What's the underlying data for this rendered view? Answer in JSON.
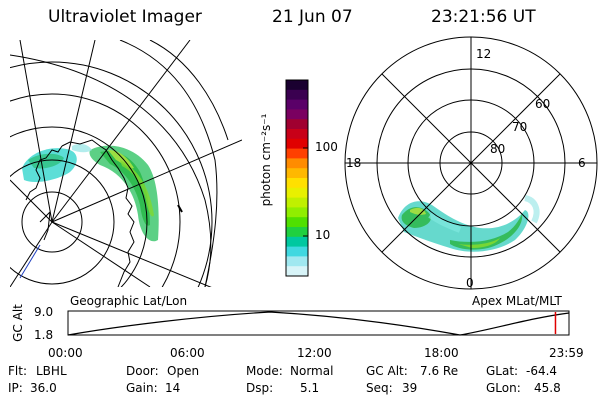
{
  "header": {
    "instrument": "Ultraviolet Imager",
    "date": "21 Jun 07",
    "time": "23:21:56 UT"
  },
  "colorbar": {
    "unit_label": "photon cm⁻²s⁻¹",
    "ticks": [
      "100",
      "10"
    ],
    "colors_top_to_bottom": [
      "#1a0030",
      "#3a0050",
      "#5a0068",
      "#7a0060",
      "#a00030",
      "#c80018",
      "#e00000",
      "#ff4000",
      "#ff8c00",
      "#ffb800",
      "#ffe000",
      "#e8f000",
      "#c0f000",
      "#90ee00",
      "#50e000",
      "#20d040",
      "#00c8a0",
      "#40d8e0",
      "#a0e8f0",
      "#d8f4f8"
    ]
  },
  "map_labels": {
    "left": "Geographic Lat/Lon",
    "right": "Apex MLat/MLT"
  },
  "polar_plot": {
    "mlt_labels": {
      "top": "12",
      "right": "6",
      "bottom": "0",
      "left": "18"
    },
    "lat_labels": [
      "60",
      "70",
      "80"
    ]
  },
  "altitude_plot": {
    "ylabel": "GC Alt",
    "y_ticks": [
      "9.0",
      "1.8"
    ],
    "x_ticks": [
      "00:00",
      "06:00",
      "12:00",
      "18:00",
      "23:59"
    ],
    "current_time_fraction": 0.973
  },
  "footer": {
    "row1": [
      {
        "label": "Flt:",
        "value": "LBHL"
      },
      {
        "label": "Door:",
        "value": "Open"
      },
      {
        "label": "Mode:",
        "value": "Normal"
      },
      {
        "label": "GC Alt:",
        "value": "7.6 Re"
      },
      {
        "label": "GLat:",
        "value": "-64.4"
      }
    ],
    "row2": [
      {
        "label": "IP:",
        "value": "36.0"
      },
      {
        "label": "Gain:",
        "value": "14"
      },
      {
        "label": "Dsp:",
        "value": "5.1"
      },
      {
        "label": "Seq:",
        "value": "39"
      },
      {
        "label": "GLon:",
        "value": "45.8"
      }
    ]
  }
}
